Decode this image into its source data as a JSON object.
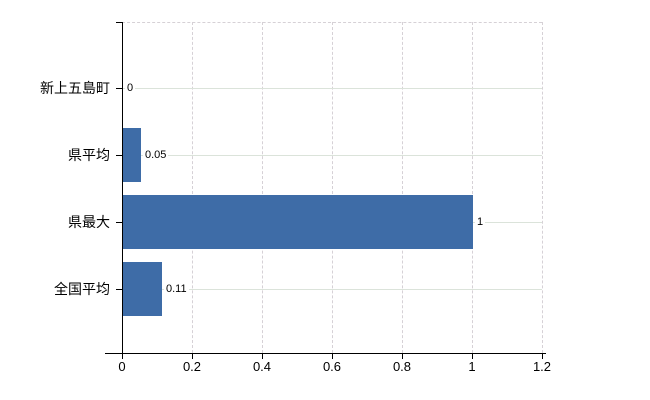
{
  "chart_data": {
    "type": "bar",
    "orientation": "horizontal",
    "title": "",
    "xlabel": "",
    "ylabel": "",
    "categories": [
      "新上五島町",
      "県平均",
      "県最大",
      "全国平均"
    ],
    "values": [
      0,
      0.05,
      1,
      0.11
    ],
    "value_labels": [
      "0",
      "0.05",
      "1",
      "0.11"
    ],
    "x_ticks": [
      0,
      0.2,
      0.4,
      0.6,
      0.8,
      1,
      1.2
    ],
    "x_tick_labels": [
      "0",
      "0.2",
      "0.4",
      "0.6",
      "0.8",
      "1",
      "1.2"
    ],
    "xlim": [
      0,
      1.2
    ],
    "legend": "none",
    "grid": {
      "vertical": "dashed",
      "horizontal": "category-center-lines"
    },
    "colors": {
      "bar": "#3e6ca7",
      "axis": "#000000",
      "vertical_gridline": "#d6d1d6",
      "horizontal_gridline": "#dbe3da",
      "background": "#ffffff",
      "text": "#000000"
    }
  }
}
